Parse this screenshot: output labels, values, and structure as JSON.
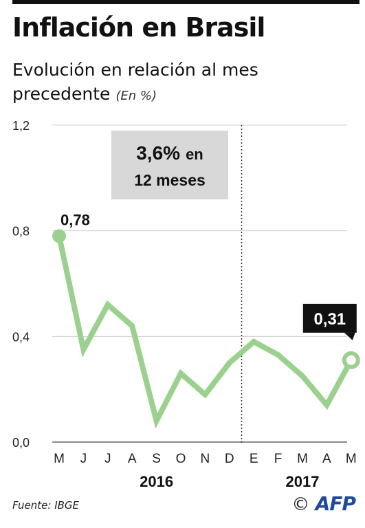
{
  "title": "Inflación en Brasil",
  "subtitle": "Evolución en relación al mes precedente",
  "unit_note": "(En %)",
  "source": "Fuente: IBGE",
  "credit_symbol": "©",
  "credit_logo": "AFP",
  "colors": {
    "line": "#9bd08f",
    "grid": "#cfcfcf",
    "callout_bg": "#d8d8d8",
    "badge_bg": "#111111"
  },
  "chart_data": {
    "type": "line",
    "categories": [
      "M",
      "J",
      "J",
      "A",
      "S",
      "O",
      "N",
      "D",
      "E",
      "F",
      "M",
      "A",
      "M"
    ],
    "series": [
      {
        "values": [
          0.78,
          0.35,
          0.52,
          0.44,
          0.08,
          0.26,
          0.18,
          0.3,
          0.38,
          0.33,
          0.25,
          0.14,
          0.31
        ]
      }
    ],
    "ylim": [
      0.0,
      1.2
    ],
    "yticks": [
      "0,0",
      "0,4",
      "0,8",
      "1,2"
    ],
    "ytick_values": [
      0.0,
      0.4,
      0.8,
      1.2
    ],
    "year_labels": [
      {
        "label": "2016",
        "center_category_index": 4
      },
      {
        "label": "2017",
        "center_category_index": 10
      }
    ],
    "year_divider_after_index": 7.5,
    "callout": {
      "line1_bold": "3,6%",
      "line1_rest": "en",
      "line2": "12 meses"
    },
    "point_labels": [
      {
        "index": 0,
        "text": "0,78",
        "style": "plain"
      },
      {
        "index": 12,
        "text": "0,31",
        "style": "badge"
      }
    ],
    "grid": true
  }
}
